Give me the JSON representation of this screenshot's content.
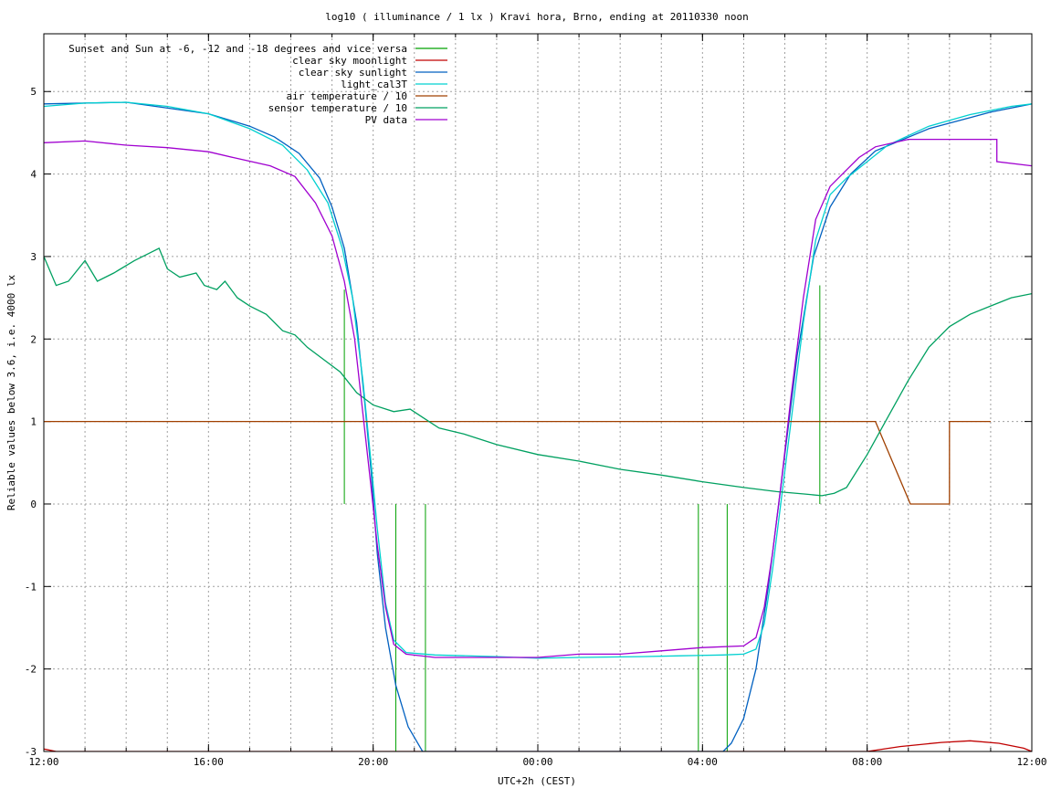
{
  "chart_data": {
    "type": "line",
    "title": "log10 ( illuminance / 1 lx ) Kravi hora, Brno, ending at 20110330 noon",
    "xlabel": "UTC+2h (CEST)",
    "ylabel": "Reliable values below 3.6, i.e. 4000 lx",
    "xlim": [
      0,
      24
    ],
    "ylim": [
      -3,
      5.7
    ],
    "x_ticks": [
      {
        "value": 0,
        "label": "12:00"
      },
      {
        "value": 4,
        "label": "16:00"
      },
      {
        "value": 8,
        "label": "20:00"
      },
      {
        "value": 12,
        "label": "00:00"
      },
      {
        "value": 16,
        "label": "04:00"
      },
      {
        "value": 20,
        "label": "08:00"
      },
      {
        "value": 24,
        "label": "12:00"
      }
    ],
    "y_ticks": [
      {
        "value": -3,
        "label": "-3"
      },
      {
        "value": -2,
        "label": "-2"
      },
      {
        "value": -1,
        "label": "-1"
      },
      {
        "value": 0,
        "label": "0"
      },
      {
        "value": 1,
        "label": "1"
      },
      {
        "value": 2,
        "label": "2"
      },
      {
        "value": 3,
        "label": "3"
      },
      {
        "value": 4,
        "label": "4"
      },
      {
        "value": 5,
        "label": "5"
      }
    ],
    "grid": true,
    "minor_x_step": 1,
    "legend_position": "top-left",
    "series": [
      {
        "name": "Sunset and Sun at -6, -12 and -18 degrees and vice versa",
        "color": "#00a000",
        "style": "impulses",
        "points": [
          [
            7.3,
            2.6
          ],
          [
            7.87,
            0
          ],
          [
            8.55,
            -3
          ],
          [
            9.27,
            -3
          ],
          [
            15.9,
            -3
          ],
          [
            16.6,
            -3
          ],
          [
            18.85,
            2.65
          ]
        ]
      },
      {
        "name": "clear sky moonlight",
        "color": "#c00000",
        "points": [
          [
            0,
            -2.97
          ],
          [
            0.3,
            -3.0
          ],
          [
            20.0,
            -3.0
          ],
          [
            20.8,
            -2.94
          ],
          [
            21.8,
            -2.89
          ],
          [
            22.5,
            -2.87
          ],
          [
            23.2,
            -2.9
          ],
          [
            23.8,
            -2.96
          ],
          [
            24,
            -3.0
          ]
        ]
      },
      {
        "name": "clear sky sunlight",
        "color": "#0060c0",
        "points": [
          [
            0,
            4.85
          ],
          [
            2,
            4.87
          ],
          [
            4,
            4.73
          ],
          [
            5,
            4.58
          ],
          [
            5.6,
            4.45
          ],
          [
            6.2,
            4.25
          ],
          [
            6.7,
            3.95
          ],
          [
            7.0,
            3.6
          ],
          [
            7.3,
            3.1
          ],
          [
            7.6,
            2.2
          ],
          [
            7.8,
            1.2
          ],
          [
            7.95,
            0.4
          ],
          [
            8.1,
            -0.6
          ],
          [
            8.3,
            -1.5
          ],
          [
            8.55,
            -2.2
          ],
          [
            8.85,
            -2.7
          ],
          [
            9.2,
            -3.0
          ],
          [
            16.5,
            -3.0
          ],
          [
            16.7,
            -2.9
          ],
          [
            17.0,
            -2.6
          ],
          [
            17.3,
            -2.0
          ],
          [
            17.6,
            -1.0
          ],
          [
            17.9,
            0.2
          ],
          [
            18.3,
            1.8
          ],
          [
            18.7,
            3.0
          ],
          [
            19.1,
            3.6
          ],
          [
            19.6,
            4.0
          ],
          [
            20.2,
            4.28
          ],
          [
            21.5,
            4.55
          ],
          [
            23.0,
            4.75
          ],
          [
            24,
            4.85
          ]
        ]
      },
      {
        "name": "light_cal3T",
        "color": "#00d0d0",
        "points": [
          [
            0,
            4.82
          ],
          [
            1,
            4.86
          ],
          [
            2,
            4.87
          ],
          [
            3,
            4.82
          ],
          [
            4,
            4.73
          ],
          [
            5,
            4.55
          ],
          [
            5.8,
            4.35
          ],
          [
            6.4,
            4.05
          ],
          [
            6.9,
            3.65
          ],
          [
            7.25,
            3.1
          ],
          [
            7.5,
            2.5
          ],
          [
            7.75,
            1.5
          ],
          [
            7.95,
            0.5
          ],
          [
            8.1,
            -0.3
          ],
          [
            8.3,
            -1.2
          ],
          [
            8.5,
            -1.65
          ],
          [
            8.8,
            -1.8
          ],
          [
            9.5,
            -1.83
          ],
          [
            11,
            -1.85
          ],
          [
            12,
            -1.87
          ],
          [
            13,
            -1.86
          ],
          [
            14.5,
            -1.85
          ],
          [
            15.5,
            -1.84
          ],
          [
            16.5,
            -1.83
          ],
          [
            17.0,
            -1.82
          ],
          [
            17.3,
            -1.76
          ],
          [
            17.5,
            -1.45
          ],
          [
            17.7,
            -0.8
          ],
          [
            17.9,
            0.0
          ],
          [
            18.15,
            1.0
          ],
          [
            18.45,
            2.2
          ],
          [
            18.75,
            3.2
          ],
          [
            19.1,
            3.75
          ],
          [
            19.5,
            3.95
          ],
          [
            20.0,
            4.15
          ],
          [
            20.5,
            4.35
          ],
          [
            21.5,
            4.58
          ],
          [
            22.5,
            4.72
          ],
          [
            23.5,
            4.82
          ],
          [
            24,
            4.85
          ]
        ]
      },
      {
        "name": "air temperature / 10",
        "color": "#a04000",
        "points": [
          [
            0,
            1.0
          ],
          [
            20.0,
            1.0
          ],
          [
            20.2,
            1.0
          ],
          [
            21.05,
            0.0
          ],
          [
            22.0,
            0.0
          ],
          [
            22.0,
            1.0
          ],
          [
            23.0,
            1.0
          ]
        ]
      },
      {
        "name": "sensor temperature / 10",
        "color": "#00a060",
        "points": [
          [
            0,
            3.0
          ],
          [
            0.3,
            2.65
          ],
          [
            0.6,
            2.7
          ],
          [
            1.0,
            2.95
          ],
          [
            1.3,
            2.7
          ],
          [
            1.7,
            2.8
          ],
          [
            2.2,
            2.95
          ],
          [
            2.6,
            3.05
          ],
          [
            2.8,
            3.1
          ],
          [
            3.0,
            2.85
          ],
          [
            3.3,
            2.75
          ],
          [
            3.7,
            2.8
          ],
          [
            3.9,
            2.65
          ],
          [
            4.2,
            2.6
          ],
          [
            4.4,
            2.7
          ],
          [
            4.7,
            2.5
          ],
          [
            5.0,
            2.4
          ],
          [
            5.4,
            2.3
          ],
          [
            5.8,
            2.1
          ],
          [
            6.1,
            2.05
          ],
          [
            6.4,
            1.9
          ],
          [
            6.8,
            1.75
          ],
          [
            7.2,
            1.6
          ],
          [
            7.6,
            1.35
          ],
          [
            8.0,
            1.2
          ],
          [
            8.5,
            1.12
          ],
          [
            8.9,
            1.15
          ],
          [
            9.2,
            1.05
          ],
          [
            9.6,
            0.92
          ],
          [
            10.2,
            0.85
          ],
          [
            11.0,
            0.72
          ],
          [
            12.0,
            0.6
          ],
          [
            13.0,
            0.52
          ],
          [
            14.0,
            0.42
          ],
          [
            15.0,
            0.35
          ],
          [
            16.0,
            0.27
          ],
          [
            17.0,
            0.2
          ],
          [
            17.8,
            0.15
          ],
          [
            18.5,
            0.12
          ],
          [
            18.9,
            0.1
          ],
          [
            19.2,
            0.13
          ],
          [
            19.5,
            0.2
          ],
          [
            20.0,
            0.6
          ],
          [
            20.5,
            1.05
          ],
          [
            21.0,
            1.5
          ],
          [
            21.5,
            1.9
          ],
          [
            22.0,
            2.15
          ],
          [
            22.5,
            2.3
          ],
          [
            23.0,
            2.4
          ],
          [
            23.5,
            2.5
          ],
          [
            24,
            2.55
          ]
        ]
      },
      {
        "name": "PV data",
        "color": "#a000d0",
        "points": [
          [
            0,
            4.38
          ],
          [
            1,
            4.4
          ],
          [
            2,
            4.35
          ],
          [
            3,
            4.32
          ],
          [
            4,
            4.27
          ],
          [
            4.6,
            4.2
          ],
          [
            5.5,
            4.1
          ],
          [
            6.1,
            3.97
          ],
          [
            6.6,
            3.65
          ],
          [
            7.0,
            3.25
          ],
          [
            7.3,
            2.7
          ],
          [
            7.55,
            2.0
          ],
          [
            7.75,
            1.1
          ],
          [
            7.95,
            0.2
          ],
          [
            8.1,
            -0.5
          ],
          [
            8.3,
            -1.25
          ],
          [
            8.5,
            -1.7
          ],
          [
            8.8,
            -1.82
          ],
          [
            9.5,
            -1.86
          ],
          [
            11,
            -1.86
          ],
          [
            12,
            -1.86
          ],
          [
            13,
            -1.82
          ],
          [
            14,
            -1.82
          ],
          [
            15,
            -1.78
          ],
          [
            16,
            -1.74
          ],
          [
            17.0,
            -1.72
          ],
          [
            17.3,
            -1.62
          ],
          [
            17.5,
            -1.25
          ],
          [
            17.7,
            -0.6
          ],
          [
            17.9,
            0.2
          ],
          [
            18.15,
            1.3
          ],
          [
            18.45,
            2.5
          ],
          [
            18.75,
            3.45
          ],
          [
            19.1,
            3.85
          ],
          [
            19.5,
            4.05
          ],
          [
            19.8,
            4.2
          ],
          [
            20.2,
            4.33
          ],
          [
            21.0,
            4.42
          ],
          [
            22.0,
            4.42
          ],
          [
            23.0,
            4.42
          ],
          [
            23.15,
            4.42
          ],
          [
            23.15,
            4.15
          ],
          [
            24,
            4.1
          ]
        ]
      }
    ]
  }
}
